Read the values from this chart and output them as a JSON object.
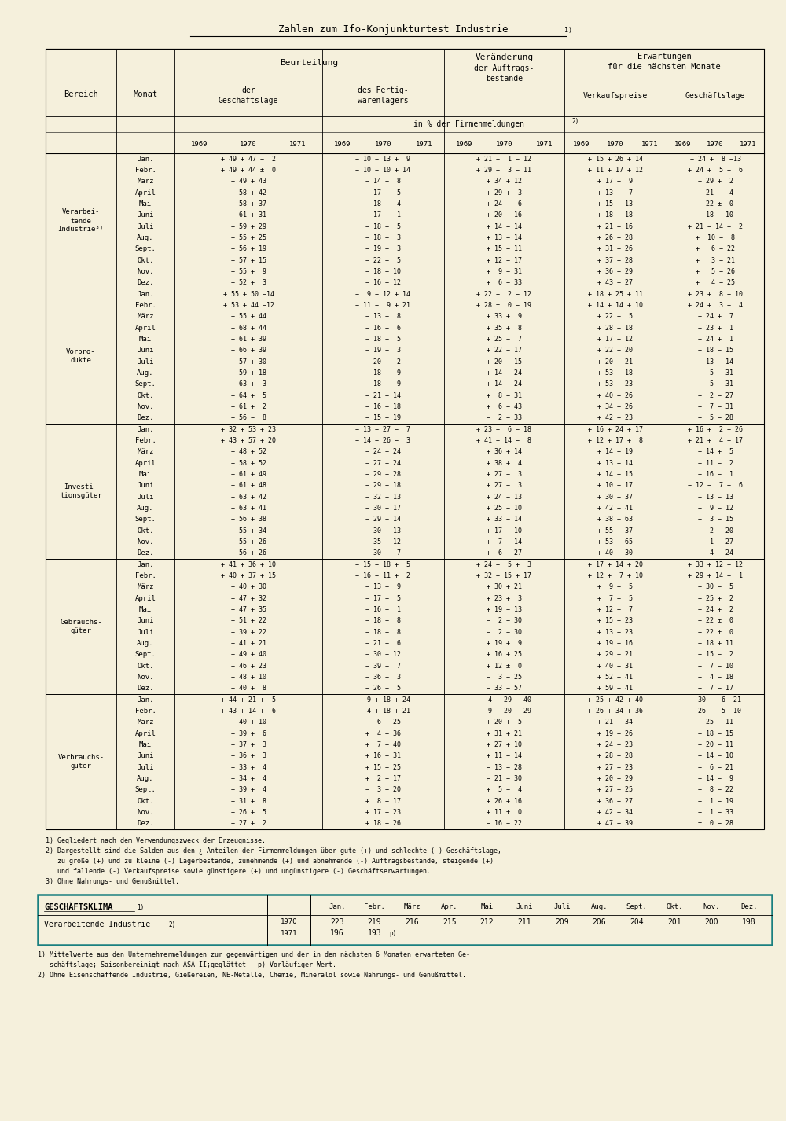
{
  "bg_color": "#f5f0dc",
  "title": "Zahlen zum Ifo-Konjunkturtest Industrie",
  "sections": [
    {
      "name": [
        "Verarbei-",
        "tende",
        "Industrie³⁾"
      ],
      "rows": [
        [
          "Jan.",
          "+ 49 + 47 −  2",
          "− 10 − 13 +  9",
          "+ 21 −  1 − 12",
          "+ 15 + 26 + 14",
          "+ 24 +  8 −13"
        ],
        [
          "Febr.",
          "+ 49 + 44 ±  0",
          "− 10 − 10 + 14",
          "+ 29 +  3 − 11",
          "+ 11 + 17 + 12",
          "+ 24 +  5 −  6"
        ],
        [
          "März",
          "+ 49 + 43",
          "− 14 −  8",
          "+ 34 + 12",
          "+ 17 +  9",
          "+ 29 +  2"
        ],
        [
          "April",
          "+ 58 + 42",
          "− 17 −  5",
          "+ 29 +  3",
          "+ 13 +  7",
          "+ 21 −  4"
        ],
        [
          "Mai",
          "+ 58 + 37",
          "− 18 −  4",
          "+ 24 −  6",
          "+ 15 + 13",
          "+ 22 ±  0"
        ],
        [
          "Juni",
          "+ 61 + 31",
          "− 17 +  1",
          "+ 20 − 16",
          "+ 18 + 18",
          "+ 18 − 10"
        ],
        [
          "Juli",
          "+ 59 + 29",
          "− 18 −  5",
          "+ 14 − 14",
          "+ 21 + 16",
          "+ 21 − 14 −  2"
        ],
        [
          "Aug.",
          "+ 55 + 25",
          "− 18 +  3",
          "+ 13 − 14",
          "+ 26 + 28",
          "+  10 −  8"
        ],
        [
          "Sept.",
          "+ 56 + 19",
          "− 19 +  3",
          "+ 15 − 11",
          "+ 31 + 26",
          "+   6 − 22"
        ],
        [
          "Okt.",
          "+ 57 + 15",
          "− 22 +  5",
          "+ 12 − 17",
          "+ 37 + 28",
          "+   3 − 21"
        ],
        [
          "Nov.",
          "+ 55 +  9",
          "− 18 + 10",
          "+  9 − 31",
          "+ 36 + 29",
          "+   5 − 26"
        ],
        [
          "Dez.",
          "+ 52 +  3",
          "− 16 + 12",
          "+  6 − 33",
          "+ 43 + 27",
          "+   4 − 25"
        ]
      ]
    },
    {
      "name": [
        "Vorpro-",
        "dukte"
      ],
      "rows": [
        [
          "Jan.",
          "+ 55 + 50 −14",
          "−  9 − 12 + 14",
          "+ 22 −  2 − 12",
          "+ 18 + 25 + 11",
          "+ 23 +  8 − 10"
        ],
        [
          "Febr.",
          "+ 53 + 44 −12",
          "− 11 −  9 + 21",
          "+ 28 ±  0 − 19",
          "+ 14 + 14 + 10",
          "+ 24 +  3 −  4"
        ],
        [
          "März",
          "+ 55 + 44",
          "− 13 −  8",
          "+ 33 +  9",
          "+ 22 +  5",
          "+ 24 +  7"
        ],
        [
          "April",
          "+ 68 + 44",
          "− 16 +  6",
          "+ 35 +  8",
          "+ 28 + 18",
          "+ 23 +  1"
        ],
        [
          "Mai",
          "+ 61 + 39",
          "− 18 −  5",
          "+ 25 −  7",
          "+ 17 + 12",
          "+ 24 +  1"
        ],
        [
          "Juni",
          "+ 66 + 39",
          "− 19 −  3",
          "+ 22 − 17",
          "+ 22 + 20",
          "+ 18 − 15"
        ],
        [
          "Juli",
          "+ 57 + 30",
          "− 20 +  2",
          "+ 20 − 15",
          "+ 20 + 21",
          "+ 13 − 14"
        ],
        [
          "Aug.",
          "+ 59 + 18",
          "− 18 +  9",
          "+ 14 − 24",
          "+ 53 + 18",
          "+  5 − 31"
        ],
        [
          "Sept.",
          "+ 63 +  3",
          "− 18 +  9",
          "+ 14 − 24",
          "+ 53 + 23",
          "+  5 − 31"
        ],
        [
          "Okt.",
          "+ 64 +  5",
          "− 21 + 14",
          "+  8 − 31",
          "+ 40 + 26",
          "+  2 − 27"
        ],
        [
          "Nov.",
          "+ 61 +  2",
          "− 16 + 18",
          "+  6 − 43",
          "+ 34 + 26",
          "+  7 − 31"
        ],
        [
          "Dez.",
          "+ 56 −  8",
          "− 15 + 19",
          "−  2 − 33",
          "+ 42 + 23",
          "+  5 − 28"
        ]
      ]
    },
    {
      "name": [
        "Investi-",
        "tionsgüter"
      ],
      "rows": [
        [
          "Jan.",
          "+ 32 + 53 + 23",
          "− 13 − 27 −  7",
          "+ 23 +  6 − 18",
          "+ 16 + 24 + 17",
          "+ 16 +  2 − 26"
        ],
        [
          "Febr.",
          "+ 43 + 57 + 20",
          "− 14 − 26 −  3",
          "+ 41 + 14 −  8",
          "+ 12 + 17 +  8",
          "+ 21 +  4 − 17"
        ],
        [
          "März",
          "+ 48 + 52",
          "− 24 − 24",
          "+ 36 + 14",
          "+ 14 + 19",
          "+ 14 +  5"
        ],
        [
          "April",
          "+ 58 + 52",
          "− 27 − 24",
          "+ 38 +  4",
          "+ 13 + 14",
          "+ 11 −  2"
        ],
        [
          "Mai",
          "+ 61 + 49",
          "− 29 − 28",
          "+ 27 −  3",
          "+ 14 + 15",
          "+ 16 −  1"
        ],
        [
          "Juni",
          "+ 61 + 48",
          "− 29 − 18",
          "+ 27 −  3",
          "+ 10 + 17",
          "− 12 −  7 +  6"
        ],
        [
          "Juli",
          "+ 63 + 42",
          "− 32 − 13",
          "+ 24 − 13",
          "+ 30 + 37",
          "+ 13 − 13"
        ],
        [
          "Aug.",
          "+ 63 + 41",
          "− 30 − 17",
          "+ 25 − 10",
          "+ 42 + 41",
          "+  9 − 12"
        ],
        [
          "Sept.",
          "+ 56 + 38",
          "− 29 − 14",
          "+ 33 − 14",
          "+ 38 + 63",
          "+  3 − 15"
        ],
        [
          "Okt.",
          "+ 55 + 34",
          "− 30 − 13",
          "+ 17 − 10",
          "+ 55 + 37",
          "−  2 − 20"
        ],
        [
          "Nov.",
          "+ 55 + 26",
          "− 35 − 12",
          "+  7 − 14",
          "+ 53 + 65",
          "+  1 − 27"
        ],
        [
          "Dez.",
          "+ 56 + 26",
          "− 30 −  7",
          "+  6 − 27",
          "+ 40 + 30",
          "+  4 − 24"
        ]
      ]
    },
    {
      "name": [
        "Gebrauchs-",
        "güter"
      ],
      "rows": [
        [
          "Jan.",
          "+ 41 + 36 + 10",
          "− 15 − 18 +  5",
          "+ 24 +  5 +  3",
          "+ 17 + 14 + 20",
          "+ 33 + 12 − 12"
        ],
        [
          "Febr.",
          "+ 40 + 37 + 15",
          "− 16 − 11 +  2",
          "+ 32 + 15 + 17",
          "+ 12 +  7 + 10",
          "+ 29 + 14 −  1"
        ],
        [
          "März",
          "+ 40 + 30",
          "− 13 −  9",
          "+ 30 + 21",
          "+  9 +  5",
          "+ 30 −  5"
        ],
        [
          "April",
          "+ 47 + 32",
          "− 17 −  5",
          "+ 23 +  3",
          "+  7 +  5",
          "+ 25 +  2"
        ],
        [
          "Mai",
          "+ 47 + 35",
          "− 16 +  1",
          "+ 19 − 13",
          "+ 12 +  7",
          "+ 24 +  2"
        ],
        [
          "Juni",
          "+ 51 + 22",
          "− 18 −  8",
          "−  2 − 30",
          "+ 15 + 23",
          "+ 22 ±  0"
        ],
        [
          "Juli",
          "+ 39 + 22",
          "− 18 −  8",
          "−  2 − 30",
          "+ 13 + 23",
          "+ 22 ±  0"
        ],
        [
          "Aug.",
          "+ 41 + 21",
          "− 21 −  6",
          "+ 19 +  9",
          "+ 19 + 16",
          "+ 18 + 11"
        ],
        [
          "Sept.",
          "+ 49 + 40",
          "− 30 − 12",
          "+ 16 + 25",
          "+ 29 + 21",
          "+ 15 −  2"
        ],
        [
          "Okt.",
          "+ 46 + 23",
          "− 39 −  7",
          "+ 12 ±  0",
          "+ 40 + 31",
          "+  7 − 10"
        ],
        [
          "Nov.",
          "+ 48 + 10",
          "− 36 −  3",
          "−  3 − 25",
          "+ 52 + 41",
          "+  4 − 18"
        ],
        [
          "Dez.",
          "+ 40 +  8",
          "− 26 +  5",
          "− 33 − 57",
          "+ 59 + 41",
          "+  7 − 17"
        ]
      ]
    },
    {
      "name": [
        "Verbrauchs-",
        "güter"
      ],
      "rows": [
        [
          "Jan.",
          "+ 44 + 21 +  5",
          "−  9 + 18 + 24",
          "−  4 − 29 − 40",
          "+ 25 + 42 + 40",
          "+ 30 −  6 −21"
        ],
        [
          "Febr.",
          "+ 43 + 14 +  6",
          "−  4 + 18 + 21",
          "−  9 − 20 − 29",
          "+ 26 + 34 + 36",
          "+ 26 −  5 −10"
        ],
        [
          "März",
          "+ 40 + 10",
          "−  6 + 25",
          "+ 20 +  5",
          "+ 21 + 34",
          "+ 25 − 11"
        ],
        [
          "April",
          "+ 39 +  6",
          "+  4 + 36",
          "+ 31 + 21",
          "+ 19 + 26",
          "+ 18 − 15"
        ],
        [
          "Mai",
          "+ 37 +  3",
          "+  7 + 40",
          "+ 27 + 10",
          "+ 24 + 23",
          "+ 20 − 11"
        ],
        [
          "Juni",
          "+ 36 +  3",
          "+ 16 + 31",
          "+ 11 − 14",
          "+ 28 + 28",
          "+ 14 − 10"
        ],
        [
          "Juli",
          "+ 33 +  4",
          "+ 15 + 25",
          "− 13 − 28",
          "+ 27 + 23",
          "+  6 − 21"
        ],
        [
          "Aug.",
          "+ 34 +  4",
          "+  2 + 17",
          "− 21 − 30",
          "+ 20 + 29",
          "+ 14 −  9"
        ],
        [
          "Sept.",
          "+ 39 +  4",
          "−  3 + 20",
          "+  5 −  4",
          "+ 27 + 25",
          "+  8 − 22"
        ],
        [
          "Okt.",
          "+ 31 +  8",
          "+  8 + 17",
          "+ 26 + 16",
          "+ 36 + 27",
          "+  1 − 19"
        ],
        [
          "Nov.",
          "+ 26 +  5",
          "+ 17 + 23",
          "+ 11 ±  0",
          "+ 42 + 34",
          "−  1 − 33"
        ],
        [
          "Dez.",
          "+ 27 +  2",
          "+ 18 + 26",
          "− 16 − 22",
          "+ 47 + 39",
          "±  0 − 28"
        ]
      ]
    }
  ],
  "footnotes": [
    "1) Gegliedert nach dem Verwendungszweck der Erzeugnisse.",
    "2) Dargestellt sind die Salden aus den ¿-Anteilen der Firmenmeldungen über gute (+) und schlechte (-) Geschäftslage,",
    "   zu große (+) und zu kleine (-) Lagerbestände, zunehmende (+) und abnehmende (-) Auftragsbestände, steigende (+)",
    "   und fallende (-) Verkaufspreise sowie günstigere (+) und ungünstigere (-) Geschäftserwartungen.",
    "3) Ohne Nahrungs- und Genußmittel."
  ],
  "box_color": "#1a8080",
  "geschaeftsklima_months": [
    "Jan.",
    "Febr.",
    "März",
    "Apr.",
    "Mai",
    "Juni",
    "Juli",
    "Aug.",
    "Sept.",
    "Okt.",
    "Nov.",
    "Dez."
  ],
  "geschaeftsklima_1970": [
    "223",
    "219",
    "216",
    "215",
    "212",
    "211",
    "209",
    "206",
    "204",
    "201",
    "200",
    "198"
  ],
  "geschaeftsklima_1971": [
    "196",
    "193"
  ],
  "box_footnotes": [
    "1) Mittelwerte aus den Unternehmermeldungen zur gegenwärtigen und der in den nächsten 6 Monaten erwarteten Ge-",
    "   schäftslage; Saisonbereinigt nach ASA II;geglättet.  p) Vorläufiger Wert.",
    "2) Ohne Eisenschaffende Industrie, Gießereien, NE-Metalle, Chemie, Mineralöl sowie Nahrungs- und Genußmittel."
  ]
}
